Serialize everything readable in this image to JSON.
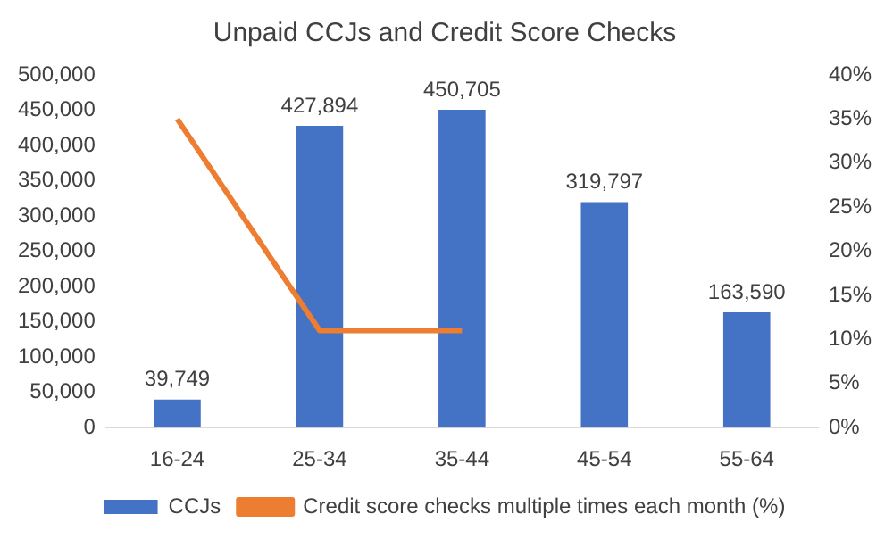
{
  "chart_data": {
    "type": "bar",
    "title": "Unpaid CCJs and Credit Score Checks",
    "categories": [
      "16-24",
      "25-34",
      "35-44",
      "45-54",
      "55-64"
    ],
    "series": [
      {
        "name": "CCJs",
        "color": "#4472c4",
        "values": [
          39749,
          427894,
          450705,
          319797,
          163590
        ],
        "value_labels": [
          "39,749",
          "427,894",
          "450,705",
          "319,797",
          "163,590"
        ]
      },
      {
        "name": "Credit score checks multiple times each month (%)",
        "type": "line",
        "axis": "y2",
        "color": "#ed7d31",
        "values": [
          35,
          11,
          11,
          null,
          null
        ]
      }
    ],
    "ylim": [
      0,
      500000
    ],
    "yticks": [
      {
        "value": 0,
        "label": "0"
      },
      {
        "value": 50000,
        "label": "50,000"
      },
      {
        "value": 100000,
        "label": "100,000"
      },
      {
        "value": 150000,
        "label": "150,000"
      },
      {
        "value": 200000,
        "label": "200,000"
      },
      {
        "value": 250000,
        "label": "250,000"
      },
      {
        "value": 300000,
        "label": "300,000"
      },
      {
        "value": 350000,
        "label": "350,000"
      },
      {
        "value": 400000,
        "label": "400,000"
      },
      {
        "value": 450000,
        "label": "450,000"
      },
      {
        "value": 500000,
        "label": "500,000"
      }
    ],
    "y2lim": [
      0,
      40
    ],
    "y2ticks": [
      {
        "value": 0,
        "label": "0%"
      },
      {
        "value": 5,
        "label": "5%"
      },
      {
        "value": 10,
        "label": "10%"
      },
      {
        "value": 15,
        "label": "15%"
      },
      {
        "value": 20,
        "label": "20%"
      },
      {
        "value": 25,
        "label": "25%"
      },
      {
        "value": 30,
        "label": "30%"
      },
      {
        "value": 35,
        "label": "35%"
      },
      {
        "value": 40,
        "label": "40%"
      }
    ],
    "grid": false,
    "legend": "bottom",
    "marker": "none"
  }
}
